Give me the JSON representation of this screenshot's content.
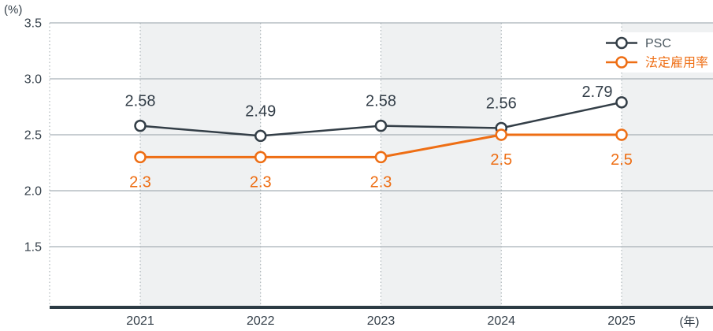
{
  "chart_data": {
    "type": "line",
    "title": "",
    "unit_y": "(%)",
    "unit_x": "(年)",
    "categories": [
      "2021",
      "2022",
      "2023",
      "2024",
      "2025"
    ],
    "y_ticks": [
      "3.5",
      "3.0",
      "2.5",
      "2.0",
      "1.5"
    ],
    "y_tick_values": [
      3.5,
      3.0,
      2.5,
      2.0,
      1.5
    ],
    "ylim": [
      1.5,
      3.5
    ],
    "grid": "horizontal-solid-and-vertical-dotted-with-alternating-column-bands",
    "legend_position": "top-right",
    "series": [
      {
        "name": "PSC",
        "line_color": "#333e47",
        "label_color": "#333e48",
        "legend_text_color": "#4a575f",
        "values": [
          2.58,
          2.49,
          2.58,
          2.56,
          2.79
        ],
        "labels": [
          "2.58",
          "2.49",
          "2.58",
          "2.56",
          "2.79"
        ],
        "label_side": "above"
      },
      {
        "name": "法定雇用率",
        "line_color": "#ee6e14",
        "label_color": "#ee6e14",
        "legend_text_color": "#ee6e14",
        "values": [
          2.3,
          2.3,
          2.3,
          2.5,
          2.5
        ],
        "labels": [
          "2.3",
          "2.3",
          "2.3",
          "2.5",
          "2.5"
        ],
        "label_side": "below"
      }
    ]
  },
  "colors": {
    "band_fill": "#eff1f2",
    "hgrid": "#a7b1b6",
    "vgrid_dotted": "#9fa9ae",
    "axis_line": "#2c3b44",
    "axis_text": "#333e48",
    "legend_background": "#ffffff",
    "marker_fill": "#ffffff"
  }
}
